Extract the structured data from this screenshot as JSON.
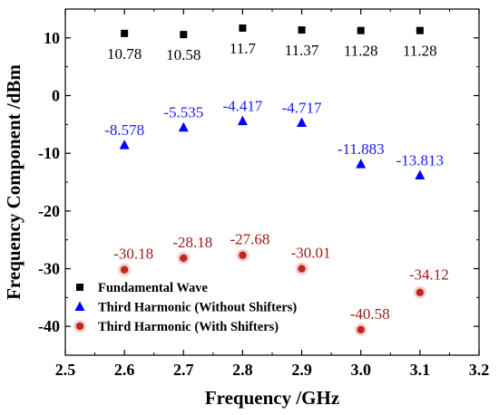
{
  "chart_data": {
    "type": "scatter",
    "xlabel": "Frequency /GHz",
    "ylabel": "Frequency Component /dBm",
    "xlim": [
      2.5,
      3.2
    ],
    "ylim": [
      -45,
      15
    ],
    "x_ticks": [
      "2.5",
      "2.6",
      "2.7",
      "2.8",
      "2.9",
      "3.0",
      "3.1",
      "3.2"
    ],
    "y_ticks": [
      "10",
      "0",
      "-10",
      "-20",
      "-30",
      "-40"
    ],
    "grid": false,
    "legend_position": "bottom-left",
    "series": [
      {
        "name": "Fundamental Wave",
        "marker": "square",
        "color": "#000000",
        "label_color": "#000000",
        "x": [
          2.6,
          2.7,
          2.8,
          2.9,
          3.0,
          3.1
        ],
        "y": [
          10.78,
          10.58,
          11.7,
          11.37,
          11.28,
          11.28
        ],
        "labels": [
          "10.78",
          "10.58",
          "11.7",
          "11.37",
          "11.28",
          "11.28"
        ]
      },
      {
        "name": "Third Harmonic (Without Shifters)",
        "marker": "triangle",
        "color": "#0000ff",
        "label_color": "#1a1aff",
        "x": [
          2.6,
          2.7,
          2.8,
          2.9,
          3.0,
          3.1
        ],
        "y": [
          -8.578,
          -5.535,
          -4.417,
          -4.717,
          -11.883,
          -13.813
        ],
        "labels": [
          "-8.578",
          "-5.535",
          "-4.417",
          "-4.717",
          "-11.883",
          "-13.813"
        ]
      },
      {
        "name": "Third Harmonic (With Shifters)",
        "marker": "circle",
        "color": "#c0281e",
        "label_color": "#a01818",
        "x": [
          2.6,
          2.7,
          2.8,
          2.9,
          3.0,
          3.1
        ],
        "y": [
          -30.18,
          -28.18,
          -27.68,
          -30.01,
          -40.58,
          -34.12
        ],
        "labels": [
          "-30.18",
          "-28.18",
          "-27.68",
          "-30.01",
          "-40.58",
          "-34.12"
        ]
      }
    ]
  }
}
